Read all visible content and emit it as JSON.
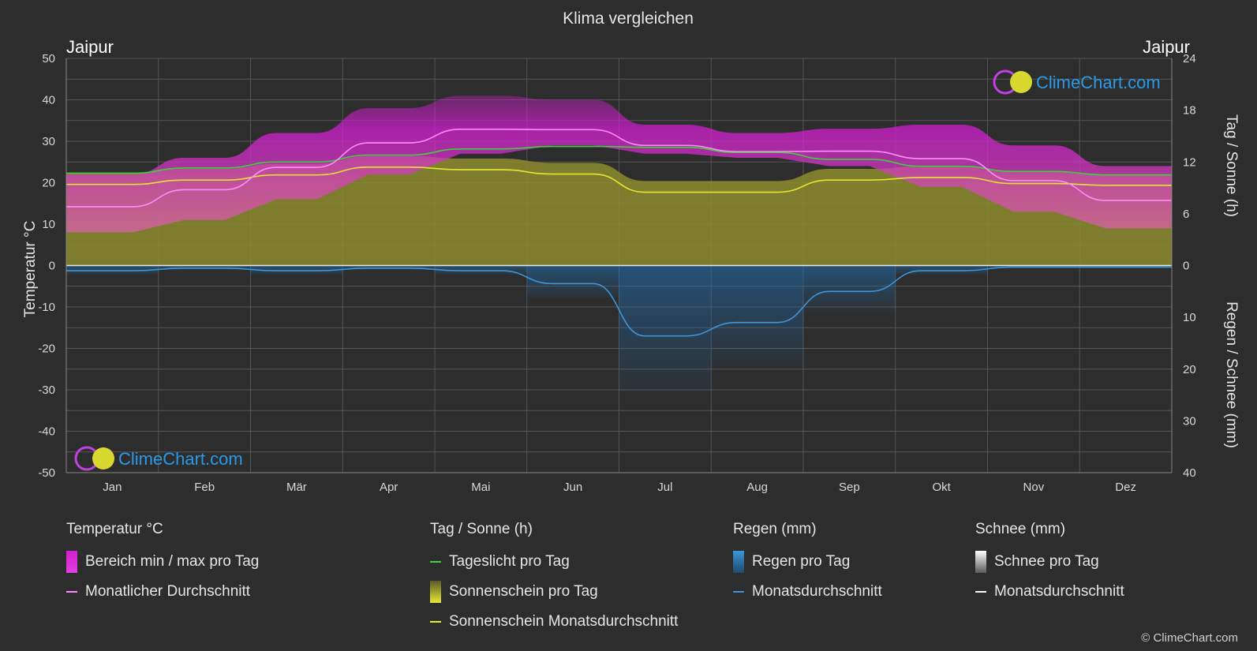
{
  "title": "Klima vergleichen",
  "city_left": "Jaipur",
  "city_right": "Jaipur",
  "brand": "ClimeChart.com",
  "copyright": "© ClimeChart.com",
  "colors": {
    "background": "#2d2d2d",
    "temp_range": "#d21ed2",
    "temp_avg": "#ff8cff",
    "daylight": "#3cd23c",
    "sunshine": "#8c8c2e",
    "sunshine_avg": "#e6e632",
    "rain": "#1e6eb4",
    "rain_avg": "#3c96dc",
    "snow_avg": "#ffffff"
  },
  "chart_data": {
    "type": "area",
    "title": "Klima vergleichen",
    "categories": [
      "Jan",
      "Feb",
      "Mär",
      "Apr",
      "Mai",
      "Jun",
      "Jul",
      "Aug",
      "Sep",
      "Okt",
      "Nov",
      "Dez"
    ],
    "axes": {
      "left": {
        "label": "Temperatur °C",
        "range": [
          -50,
          50
        ],
        "ticks": [
          50,
          40,
          30,
          20,
          10,
          0,
          -10,
          -20,
          -30,
          -40,
          -50
        ]
      },
      "right_top": {
        "label": "Tag / Sonne (h)",
        "range": [
          0,
          24
        ],
        "ticks": [
          24,
          18,
          12,
          6,
          0
        ]
      },
      "right_bottom": {
        "label": "Regen / Schnee (mm)",
        "range": [
          0,
          40
        ],
        "ticks": [
          0,
          10,
          20,
          30,
          40
        ]
      }
    },
    "grid": true,
    "series": [
      {
        "name": "Bereich min / max pro Tag",
        "kind": "range",
        "min": [
          8,
          11,
          16,
          22,
          27,
          29,
          27,
          26,
          24,
          19,
          13,
          9
        ],
        "max": [
          22,
          26,
          32,
          38,
          41,
          40,
          34,
          32,
          33,
          34,
          29,
          24
        ]
      },
      {
        "name": "Monatlicher Durchschnitt",
        "axis": "temp",
        "values": [
          14.2,
          18.3,
          23.7,
          29.6,
          32.9,
          32.8,
          29.0,
          27.5,
          27.6,
          25.8,
          20.5,
          15.7
        ]
      },
      {
        "name": "Tageslicht pro Tag",
        "axis": "sun",
        "values": [
          10.7,
          11.3,
          12.0,
          12.8,
          13.5,
          13.8,
          13.7,
          13.1,
          12.3,
          11.5,
          10.9,
          10.5
        ]
      },
      {
        "name": "Sonnenschein Monatsdurchschnitt",
        "axis": "sun",
        "values": [
          9.4,
          9.9,
          10.5,
          11.4,
          11.1,
          10.6,
          8.5,
          8.5,
          9.9,
          10.2,
          9.5,
          9.3
        ]
      },
      {
        "name": "Monatsdurchschnitt",
        "kind": "rain",
        "axis": "rain",
        "values": [
          1.0,
          0.5,
          1.0,
          0.5,
          1.0,
          3.5,
          13.6,
          11.0,
          5.0,
          1.0,
          0.3,
          0.3
        ]
      }
    ]
  },
  "legend": {
    "temperature": {
      "heading": "Temperatur °C",
      "items": [
        "Bereich min / max pro Tag",
        "Monatlicher Durchschnitt"
      ]
    },
    "sun": {
      "heading": "Tag / Sonne (h)",
      "items": [
        "Tageslicht pro Tag",
        "Sonnenschein pro Tag",
        "Sonnenschein Monatsdurchschnitt"
      ]
    },
    "rain": {
      "heading": "Regen (mm)",
      "items": [
        "Regen pro Tag",
        "Monatsdurchschnitt"
      ]
    },
    "snow": {
      "heading": "Schnee (mm)",
      "items": [
        "Schnee pro Tag",
        "Monatsdurchschnitt"
      ]
    }
  }
}
